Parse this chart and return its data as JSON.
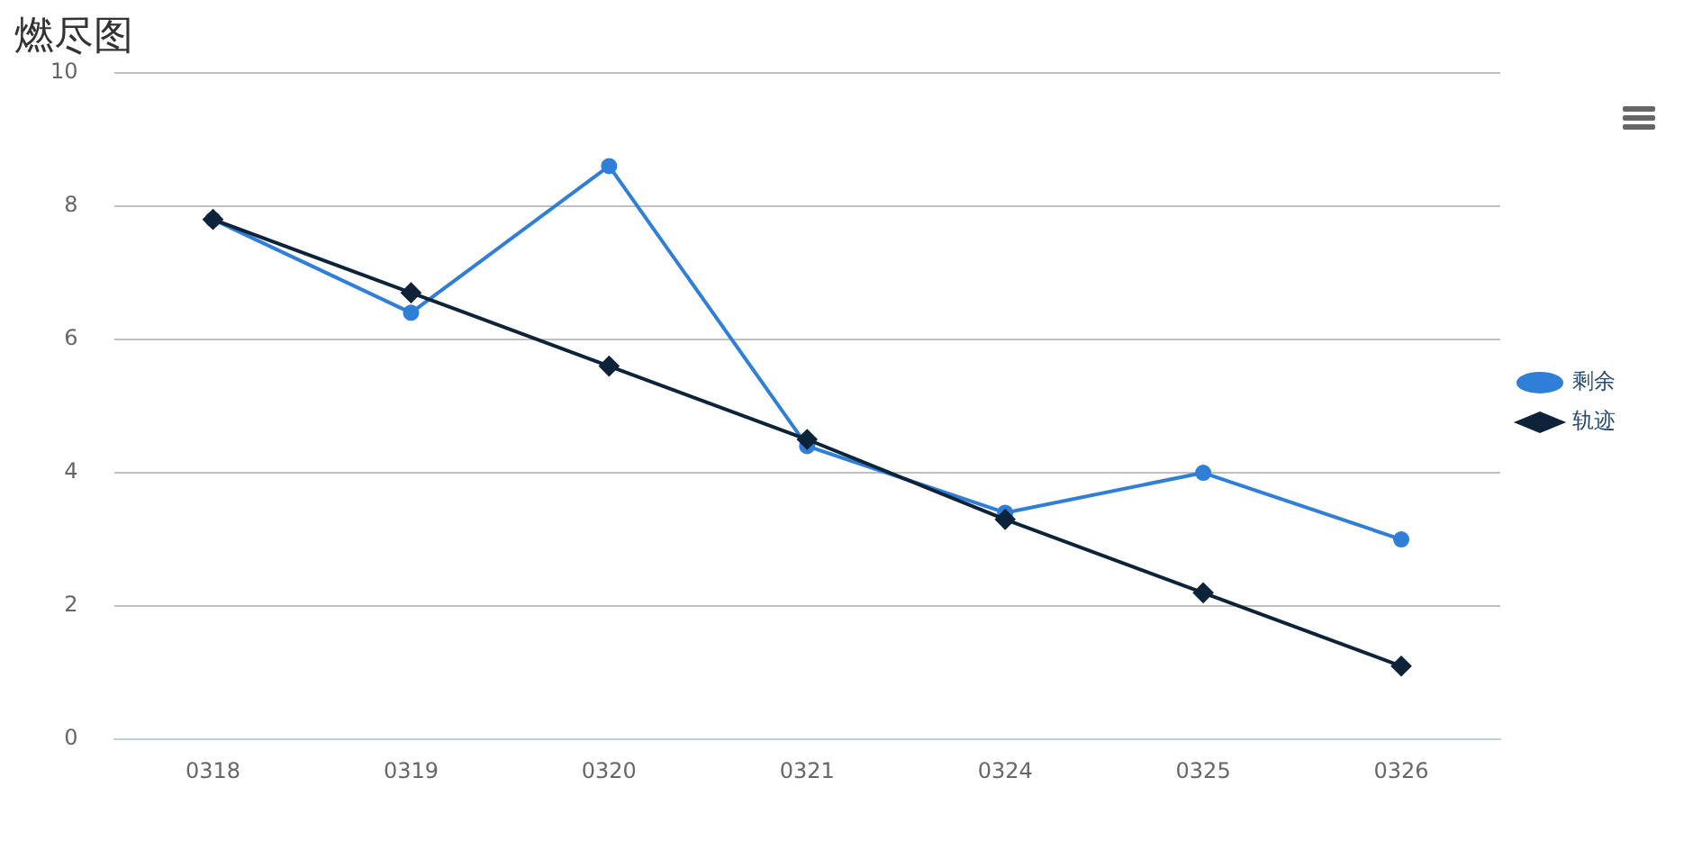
{
  "chart_data": {
    "type": "line",
    "title": "燃尽图",
    "categories": [
      "0318",
      "0319",
      "0320",
      "0321",
      "0324",
      "0325",
      "0326"
    ],
    "series": [
      {
        "name": "剩余",
        "color": "#2f7ed8",
        "marker": "circle",
        "values": [
          7.8,
          6.4,
          8.6,
          4.4,
          3.4,
          4,
          3
        ]
      },
      {
        "name": "轨迹",
        "color": "#0d233a",
        "marker": "diamond",
        "values": [
          7.8,
          6.7,
          5.6,
          4.5,
          3.3,
          2.2,
          1.1
        ]
      }
    ],
    "ylim": [
      0,
      10
    ],
    "yticks": [
      0,
      2,
      4,
      6,
      8,
      10
    ],
    "grid": "y",
    "legend": "right"
  }
}
